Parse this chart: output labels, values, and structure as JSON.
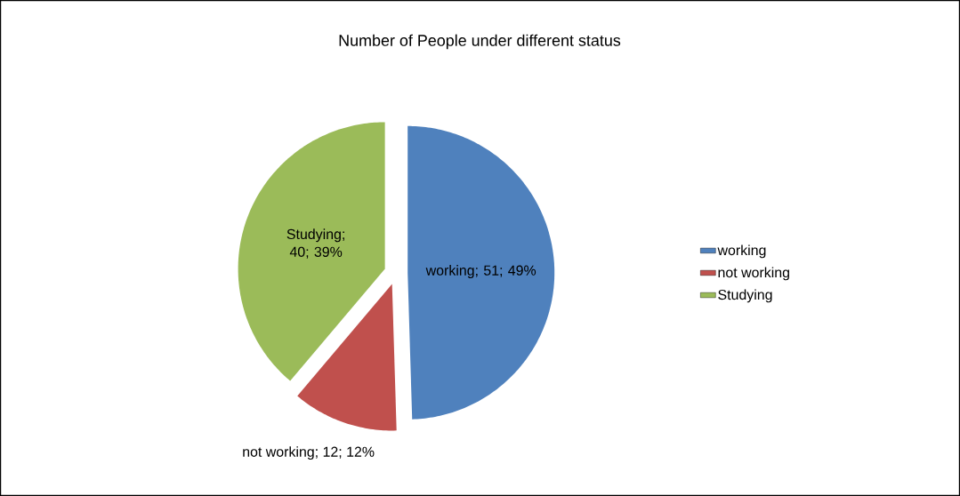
{
  "chart_data": {
    "type": "pie",
    "title": "Number of People under different status",
    "categories": [
      "working",
      "not working",
      "Studying"
    ],
    "values": [
      51,
      12,
      40
    ],
    "colors": [
      "#4f81bd",
      "#c0504d",
      "#9bbb59"
    ],
    "value_labels": [
      "working; 51; 49%",
      "not working; 12; 12%",
      "Studying; 40; 39%"
    ],
    "legend": "right"
  }
}
